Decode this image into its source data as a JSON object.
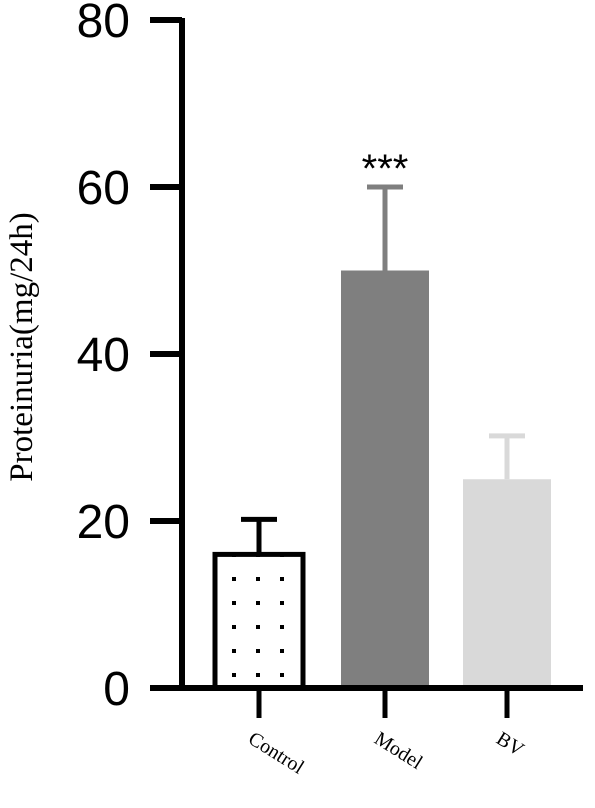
{
  "chart_data": {
    "type": "bar",
    "title": "",
    "xlabel": "",
    "ylabel": "Proteinuria(mg/24h)",
    "ylim": [
      0,
      80
    ],
    "yticks": [
      "0",
      "20",
      "40",
      "60",
      "80"
    ],
    "categories": [
      "Control",
      "Model",
      "BV"
    ],
    "values": [
      16,
      50,
      25
    ],
    "errors": [
      4.2,
      10,
      5.2
    ],
    "colors": [
      "#ffffff",
      "#7f7f7f",
      "#d9d9d9"
    ],
    "patterns": [
      "dotted",
      "solid",
      "solid"
    ],
    "annotations": [
      "",
      "***",
      ""
    ],
    "grid": false,
    "legend": "none"
  }
}
